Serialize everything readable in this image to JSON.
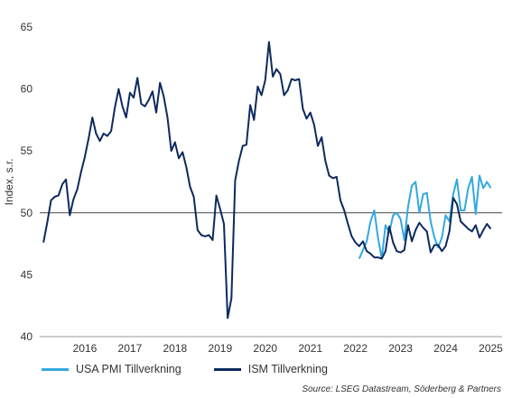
{
  "chart_data": {
    "type": "line",
    "ylabel": "Index, s.r.",
    "ylim": [
      40,
      65
    ],
    "y_ticks": [
      40,
      45,
      50,
      55,
      60,
      65
    ],
    "reference_line": 50,
    "x_range": [
      2015.5,
      2025.75
    ],
    "x_ticks": [
      "2016",
      "2017",
      "2018",
      "2019",
      "2020",
      "2021",
      "2022",
      "2023",
      "2024",
      "2025"
    ],
    "colors": {
      "usa_pmi": "#33a8e0",
      "ism": "#0d2a5e",
      "refline": "#444444",
      "axis": "#999999"
    },
    "series": [
      {
        "name": "USA PMI Tillverkning",
        "color": "#33a8e0",
        "start": 2022.583,
        "step": 0.0833333,
        "values": [
          46.3,
          47.0,
          47.7,
          49.3,
          50.2,
          48.0,
          46.3,
          49.0,
          48.4,
          49.8,
          50.0,
          49.5,
          47.8,
          50.5,
          52.2,
          52.5,
          50.0,
          51.5,
          51.6,
          49.3,
          48.0,
          47.2,
          48.0,
          49.8,
          49.3,
          51.5,
          52.7,
          50.2,
          50.2,
          52.0,
          52.9,
          49.9,
          53.0,
          52.0,
          52.5,
          52.0
        ]
      },
      {
        "name": "ISM Tillverkning",
        "color": "#0d2a5e",
        "start": 2015.583,
        "step": 0.0833333,
        "values": [
          47.6,
          49.2,
          51.0,
          51.3,
          51.4,
          52.3,
          52.7,
          49.8,
          51.1,
          51.9,
          53.3,
          54.5,
          56.0,
          57.7,
          56.4,
          55.8,
          56.4,
          56.2,
          56.6,
          58.5,
          60.0,
          58.6,
          57.7,
          59.7,
          59.3,
          60.9,
          58.8,
          58.6,
          59.1,
          59.8,
          58.1,
          60.5,
          59.4,
          57.7,
          55.0,
          55.7,
          54.4,
          54.9,
          53.7,
          52.1,
          51.3,
          48.6,
          48.2,
          48.1,
          48.2,
          47.8,
          51.4,
          50.3,
          49.1,
          41.5,
          43.1,
          52.6,
          54.2,
          55.4,
          55.5,
          58.7,
          57.5,
          60.2,
          59.5,
          60.7,
          63.8,
          61.0,
          61.6,
          61.2,
          59.5,
          59.9,
          60.8,
          60.7,
          60.8,
          58.4,
          57.6,
          58.1,
          57.1,
          55.4,
          56.1,
          54.2,
          53.0,
          52.8,
          52.9,
          51.0,
          50.2,
          49.1,
          48.1,
          47.6,
          47.3,
          47.7,
          46.9,
          46.7,
          46.4,
          46.4,
          46.3,
          46.9,
          48.9,
          47.6,
          46.9,
          46.8,
          47.0,
          49.0,
          47.7,
          48.6,
          49.2,
          48.8,
          48.5,
          46.8,
          47.4,
          47.4,
          46.9,
          47.3,
          48.5,
          51.2,
          50.7,
          49.3,
          49.0,
          48.7,
          48.5,
          49.0,
          48.0,
          48.6,
          49.1,
          48.7
        ]
      }
    ]
  },
  "legend": {
    "usa_pmi": "USA PMI Tillverkning",
    "ism": "ISM Tillverkning"
  },
  "source": "Source: LSEG Datastream, Söderberg & Partners"
}
